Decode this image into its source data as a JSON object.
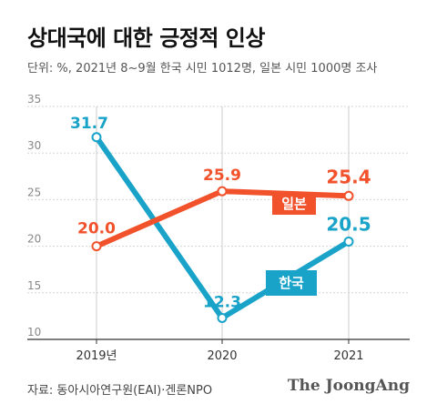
{
  "header": {
    "title": "상대국에 대한 긍정적 인상",
    "subtitle": "단위: %, 2021년 8~9월 한국 시민 1012명, 일본 시민 1000명 조사"
  },
  "footer": {
    "source": "자료: 동아시아연구원(EAI)·겐론NPO",
    "brand": "The JoongAng"
  },
  "chart_data": {
    "type": "line",
    "categories": [
      "2019년",
      "2020",
      "2021"
    ],
    "ylim": [
      10,
      35
    ],
    "yticks": [
      "10",
      "15",
      "20",
      "25",
      "30",
      "35"
    ],
    "grid": "y",
    "series": [
      {
        "name": "한국",
        "color": "#1aa3c9",
        "values": [
          31.7,
          12.3,
          20.5
        ],
        "labels": [
          "31.7",
          "12.3",
          "20.5"
        ]
      },
      {
        "name": "일본",
        "color": "#f2522b",
        "values": [
          20.0,
          25.9,
          25.4
        ],
        "labels": [
          "20.0",
          "25.9",
          "25.4"
        ]
      }
    ]
  }
}
